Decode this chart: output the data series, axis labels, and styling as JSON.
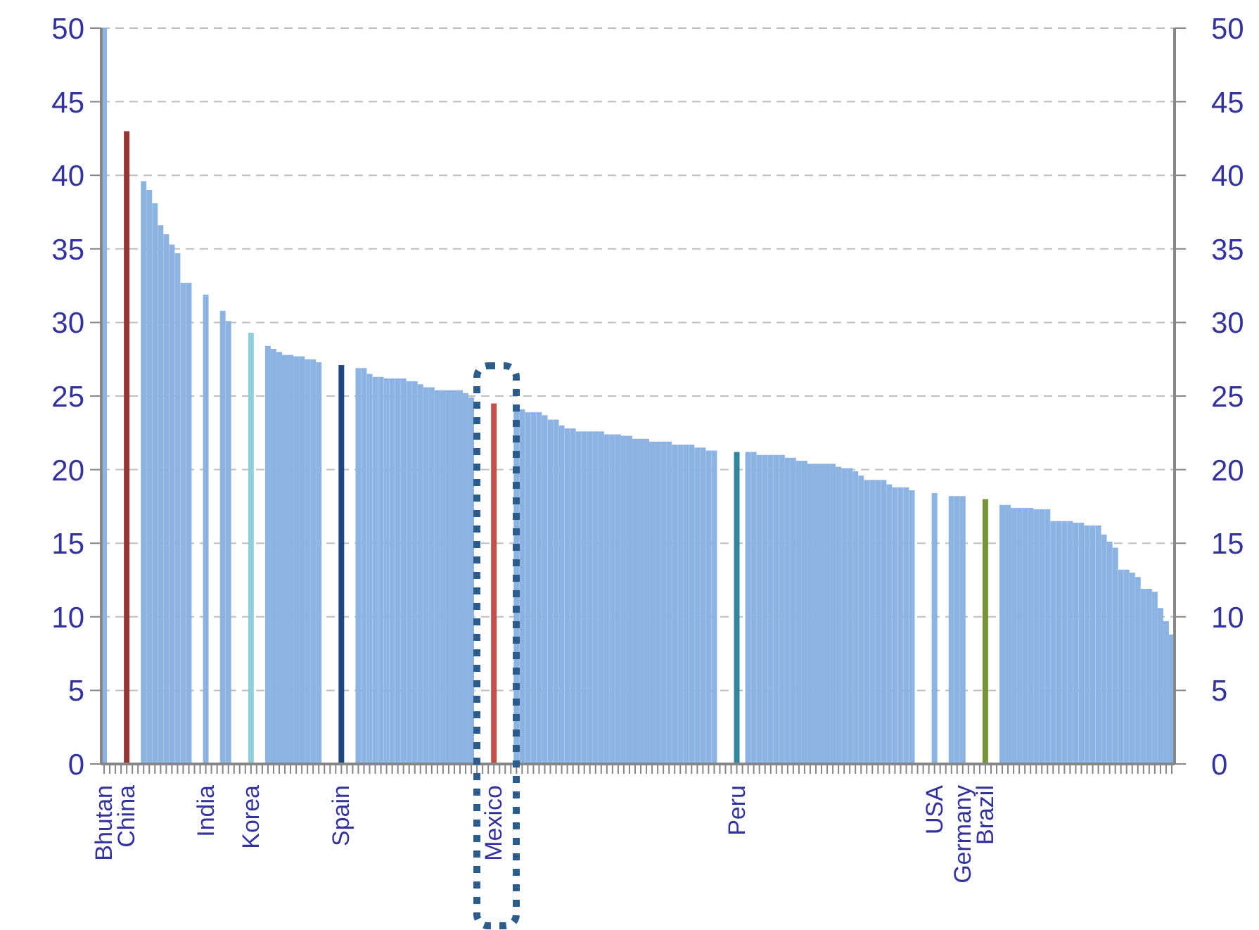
{
  "chart_data": {
    "type": "bar",
    "categories": [
      "Bhutan",
      null,
      null,
      null,
      "China",
      null,
      null,
      null,
      null,
      null,
      null,
      null,
      null,
      null,
      null,
      null,
      null,
      null,
      "India",
      null,
      null,
      null,
      null,
      null,
      null,
      null,
      "Korea",
      null,
      null,
      null,
      null,
      null,
      null,
      null,
      null,
      null,
      null,
      null,
      null,
      null,
      null,
      null,
      "Spain",
      null,
      null,
      null,
      null,
      null,
      null,
      null,
      null,
      null,
      null,
      null,
      null,
      null,
      null,
      null,
      null,
      null,
      null,
      null,
      null,
      null,
      null,
      null,
      null,
      null,
      null,
      "Mexico",
      null,
      null,
      null,
      null,
      null,
      null,
      null,
      null,
      null,
      null,
      null,
      null,
      null,
      null,
      null,
      null,
      null,
      null,
      null,
      null,
      null,
      null,
      null,
      null,
      null,
      null,
      null,
      null,
      null,
      null,
      null,
      null,
      null,
      null,
      null,
      null,
      null,
      null,
      null,
      null,
      null,
      null,
      "Peru",
      null,
      null,
      null,
      null,
      null,
      null,
      null,
      null,
      null,
      null,
      null,
      null,
      null,
      null,
      null,
      null,
      null,
      null,
      null,
      null,
      null,
      null,
      null,
      null,
      null,
      null,
      null,
      null,
      null,
      null,
      null,
      null,
      null,
      null,
      "USA",
      null,
      null,
      null,
      null,
      "Germany",
      null,
      null,
      null,
      "Brazil",
      null,
      null,
      null,
      null,
      null,
      null,
      null,
      null,
      null,
      null,
      null,
      null,
      null,
      null,
      null,
      null,
      null,
      null,
      null,
      null,
      null,
      null,
      null,
      null,
      null,
      null,
      null,
      null,
      null,
      null,
      null,
      null,
      null
    ],
    "values": [
      50,
      null,
      null,
      null,
      43,
      null,
      null,
      39.6,
      39.0,
      38.1,
      36.6,
      36.0,
      35.3,
      34.7,
      32.7,
      32.7,
      null,
      null,
      31.9,
      null,
      null,
      30.8,
      30.1,
      null,
      null,
      null,
      29.3,
      null,
      null,
      28.4,
      28.2,
      28.0,
      27.8,
      27.8,
      27.7,
      27.7,
      27.5,
      27.5,
      27.3,
      null,
      null,
      null,
      27.1,
      null,
      null,
      26.9,
      26.9,
      26.5,
      26.3,
      26.3,
      26.2,
      26.2,
      26.2,
      26.2,
      26.0,
      26.0,
      25.8,
      25.6,
      25.6,
      25.4,
      25.4,
      25.4,
      25.4,
      25.4,
      25.2,
      24.9,
      null,
      null,
      null,
      24.5,
      null,
      null,
      null,
      24.3,
      24.1,
      23.9,
      23.9,
      23.9,
      23.7,
      23.4,
      23.4,
      23.0,
      22.8,
      22.8,
      22.6,
      22.6,
      22.6,
      22.6,
      22.6,
      22.4,
      22.4,
      22.4,
      22.3,
      22.3,
      22.1,
      22.1,
      22.1,
      21.9,
      21.9,
      21.9,
      21.9,
      21.7,
      21.7,
      21.7,
      21.7,
      21.5,
      21.5,
      21.3,
      21.3,
      null,
      null,
      null,
      21.2,
      null,
      21.2,
      21.2,
      21.0,
      21.0,
      21.0,
      21.0,
      21.0,
      20.8,
      20.8,
      20.6,
      20.6,
      20.4,
      20.4,
      20.4,
      20.4,
      20.4,
      20.2,
      20.1,
      20.1,
      19.9,
      19.6,
      19.3,
      19.3,
      19.3,
      19.3,
      19.0,
      18.8,
      18.8,
      18.8,
      18.6,
      null,
      null,
      null,
      18.4,
      null,
      null,
      18.2,
      18.2,
      18.2,
      null,
      null,
      null,
      18.0,
      null,
      null,
      17.6,
      17.6,
      17.4,
      17.4,
      17.4,
      17.4,
      17.3,
      17.3,
      17.3,
      16.5,
      16.5,
      16.5,
      16.5,
      16.4,
      16.4,
      16.2,
      16.2,
      16.2,
      15.6,
      15.1,
      14.7,
      13.2,
      13.2,
      13.0,
      12.7,
      11.9,
      11.9,
      11.7,
      10.6,
      9.7,
      8.8
    ],
    "colors": [
      "#8db3e2",
      "#8db3e2",
      "#8db3e2",
      "#8db3e2",
      "#953735",
      "#8db3e2",
      "#8db3e2",
      "#8db3e2",
      "#8db3e2",
      "#8db3e2",
      "#8db3e2",
      "#8db3e2",
      "#8db3e2",
      "#8db3e2",
      "#8db3e2",
      "#8db3e2",
      "#8db3e2",
      "#8db3e2",
      "#8db3e2",
      "#8db3e2",
      "#8db3e2",
      "#8db3e2",
      "#8db3e2",
      "#8db3e2",
      "#8db3e2",
      "#8db3e2",
      "#93cddd",
      "#8db3e2",
      "#8db3e2",
      "#8db3e2",
      "#8db3e2",
      "#8db3e2",
      "#8db3e2",
      "#8db3e2",
      "#8db3e2",
      "#8db3e2",
      "#8db3e2",
      "#8db3e2",
      "#8db3e2",
      "#8db3e2",
      "#8db3e2",
      "#8db3e2",
      "#1f497d",
      "#8db3e2",
      "#8db3e2",
      "#8db3e2",
      "#8db3e2",
      "#8db3e2",
      "#8db3e2",
      "#8db3e2",
      "#8db3e2",
      "#8db3e2",
      "#8db3e2",
      "#8db3e2",
      "#8db3e2",
      "#8db3e2",
      "#8db3e2",
      "#8db3e2",
      "#8db3e2",
      "#8db3e2",
      "#8db3e2",
      "#8db3e2",
      "#8db3e2",
      "#8db3e2",
      "#8db3e2",
      "#8db3e2",
      "#8db3e2",
      "#8db3e2",
      "#8db3e2",
      "#c0504d",
      "#8db3e2",
      "#8db3e2",
      "#8db3e2",
      "#8db3e2",
      "#8db3e2",
      "#8db3e2",
      "#8db3e2",
      "#8db3e2",
      "#8db3e2",
      "#8db3e2",
      "#8db3e2",
      "#8db3e2",
      "#8db3e2",
      "#8db3e2",
      "#8db3e2",
      "#8db3e2",
      "#8db3e2",
      "#8db3e2",
      "#8db3e2",
      "#8db3e2",
      "#8db3e2",
      "#8db3e2",
      "#8db3e2",
      "#8db3e2",
      "#8db3e2",
      "#8db3e2",
      "#8db3e2",
      "#8db3e2",
      "#8db3e2",
      "#8db3e2",
      "#8db3e2",
      "#8db3e2",
      "#8db3e2",
      "#8db3e2",
      "#8db3e2",
      "#8db3e2",
      "#8db3e2",
      "#8db3e2",
      "#8db3e2",
      "#8db3e2",
      "#8db3e2",
      "#8db3e2",
      "#31859c",
      "#8db3e2",
      "#8db3e2",
      "#8db3e2",
      "#8db3e2",
      "#8db3e2",
      "#8db3e2",
      "#8db3e2",
      "#8db3e2",
      "#8db3e2",
      "#8db3e2",
      "#8db3e2",
      "#8db3e2",
      "#8db3e2",
      "#8db3e2",
      "#8db3e2",
      "#8db3e2",
      "#8db3e2",
      "#8db3e2",
      "#8db3e2",
      "#8db3e2",
      "#8db3e2",
      "#8db3e2",
      "#8db3e2",
      "#8db3e2",
      "#8db3e2",
      "#8db3e2",
      "#8db3e2",
      "#8db3e2",
      "#8db3e2",
      "#8db3e2",
      "#8db3e2",
      "#8db3e2",
      "#8db3e2",
      "#8db3e2",
      "#8db3e2",
      "#8db3e2",
      "#8db3e2",
      "#8db3e2",
      "#8db3e2",
      "#8db3e2",
      "#8db3e2",
      "#8db3e2",
      "#8db3e2",
      "#77933c",
      "#8db3e2",
      "#8db3e2",
      "#8db3e2",
      "#8db3e2",
      "#8db3e2",
      "#8db3e2",
      "#8db3e2",
      "#8db3e2",
      "#8db3e2",
      "#8db3e2",
      "#8db3e2",
      "#8db3e2",
      "#8db3e2",
      "#8db3e2",
      "#8db3e2",
      "#8db3e2",
      "#8db3e2",
      "#8db3e2",
      "#8db3e2",
      "#8db3e2",
      "#8db3e2",
      "#8db3e2",
      "#8db3e2",
      "#8db3e2",
      "#8db3e2",
      "#8db3e2",
      "#8db3e2",
      "#8db3e2",
      "#8db3e2",
      "#8db3e2",
      "#8db3e2",
      "#8db3e2",
      "#8db3e2"
    ],
    "ylim": [
      0,
      50
    ],
    "yticks": [
      0,
      5,
      10,
      15,
      20,
      25,
      30,
      35,
      40,
      45,
      50
    ],
    "y2lim": [
      0,
      50
    ],
    "y2ticks": [
      0,
      5,
      10,
      15,
      20,
      25,
      30,
      35,
      40,
      45,
      50
    ],
    "grid": "y",
    "legend": false
  }
}
